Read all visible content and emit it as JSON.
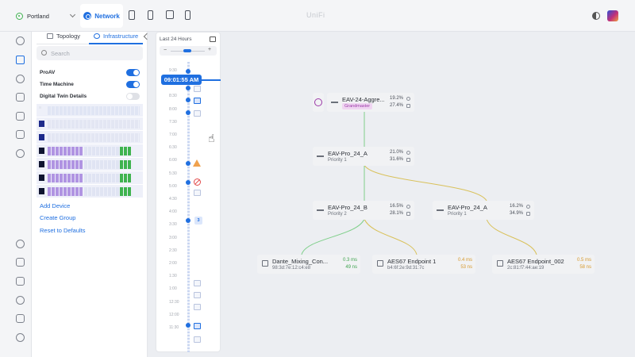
{
  "header": {
    "site": "Portland",
    "app_tab": "Network",
    "brand": "UniFi",
    "app_icons": [
      "device-icon",
      "mobile-icon",
      "door-icon",
      "phone-icon"
    ]
  },
  "rail": {
    "icons": [
      "dashboard-icon",
      "topology-icon",
      "target-icon",
      "devices-icon",
      "clients-icon",
      "insights-icon",
      "shield-icon",
      "settings-icon",
      "logs-icon",
      "integrations-icon",
      "alerts-icon",
      "docs-icon",
      "admins-icon"
    ]
  },
  "panel": {
    "tabs": [
      {
        "label": "Topology",
        "active": false
      },
      {
        "label": "Infrastructure",
        "active": true
      }
    ],
    "search_placeholder": "Search",
    "toggles": [
      {
        "label": "ProAV",
        "on": true
      },
      {
        "label": "Time Machine",
        "on": true
      },
      {
        "label": "Digital Twin Details",
        "on": false
      }
    ],
    "links": [
      "Add Device",
      "Create Group",
      "Reset to Defaults"
    ]
  },
  "timeline": {
    "title": "Last 24 Hours",
    "current_time": "09:01:55 AM",
    "ticks": [
      "9:30",
      "9:00",
      "8:30",
      "8:00",
      "7:30",
      "7:00",
      "6:30",
      "6:00",
      "5:30",
      "5:00",
      "4:30",
      "4:00",
      "3:30",
      "3:00",
      "2:30",
      "2:00",
      "1:30",
      "1:00",
      "12:30",
      "12:00",
      "11:30"
    ],
    "event_count": "3"
  },
  "topology": {
    "nodes": [
      {
        "id": "aggr",
        "name": "EAV-24-Aggre...",
        "sub": "Grandmaster",
        "m1": "19.2%",
        "m2": "27.4%"
      },
      {
        "id": "pro_a1",
        "name": "EAV-Pro_24_A",
        "sub": "Priority 1",
        "m1": "21.0%",
        "m2": "31.6%"
      },
      {
        "id": "pro_b",
        "name": "EAV-Pro_24_B",
        "sub": "Priority 2",
        "m1": "16.5%",
        "m2": "28.1%"
      },
      {
        "id": "pro_a2",
        "name": "EAV-Pro_24_A",
        "sub": "Priority 1",
        "m1": "16.2%",
        "m2": "34.9%"
      }
    ],
    "endpoints": [
      {
        "name": "Dante_Mixing_Con...",
        "mac": "98:3d:7e:12:c4:e8",
        "lat1": "0.3 ms",
        "lat2": "49 ns",
        "status": "green"
      },
      {
        "name": "AES67 Endpoint 1",
        "mac": "b4:6f:2e:9d:31:7c",
        "lat1": "0.4 ms",
        "lat2": "53 ns",
        "status": "amber"
      },
      {
        "name": "AES67 Endpoint_002",
        "mac": "2c:81:f7:44:ae:19",
        "lat1": "0.5 ms",
        "lat2": "58 ns",
        "status": "amber"
      }
    ],
    "link_colors": {
      "green": "#7fcf8a",
      "amber": "#d9c15a"
    }
  }
}
